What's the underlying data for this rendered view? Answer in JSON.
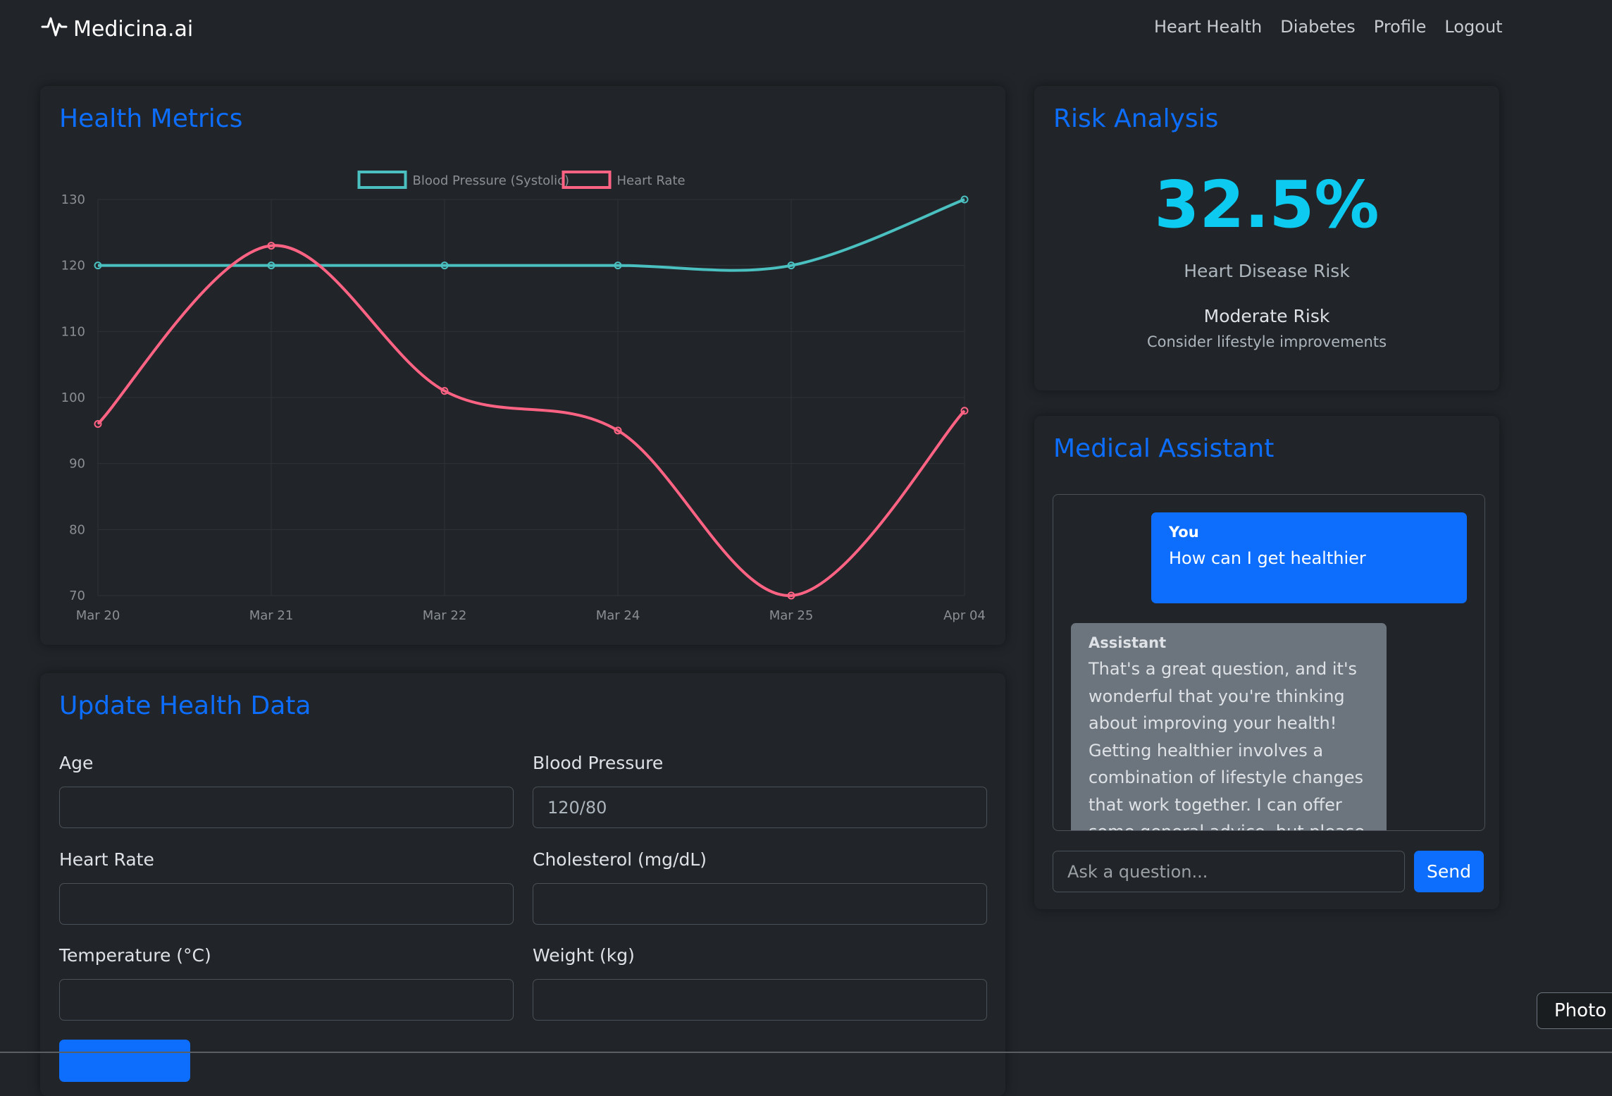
{
  "nav": {
    "brand": "Medicina.ai",
    "links": [
      "Heart Health",
      "Diabetes",
      "Profile",
      "Logout"
    ]
  },
  "metrics": {
    "title": "Health Metrics"
  },
  "chart_data": {
    "type": "line",
    "categories": [
      "Mar 20",
      "Mar 21",
      "Mar 22",
      "Mar 24",
      "Mar 25",
      "Apr 04"
    ],
    "series": [
      {
        "name": "Blood Pressure (Systolic)",
        "values": [
          120,
          120,
          120,
          120,
          120,
          130
        ],
        "color": "#4bc0c0"
      },
      {
        "name": "Heart Rate",
        "values": [
          96,
          123,
          101,
          95,
          70,
          98
        ],
        "color": "#ff6384"
      }
    ],
    "ylim": [
      70,
      130
    ],
    "yticks": [
      130,
      120,
      110,
      100,
      90,
      80,
      70
    ],
    "legend": "top",
    "grid": true
  },
  "risk": {
    "title": "Risk Analysis",
    "value": "32.5%",
    "label": "Heart Disease Risk",
    "level": "Moderate Risk",
    "advice": "Consider lifestyle improvements"
  },
  "assistant": {
    "title": "Medical Assistant",
    "messages": [
      {
        "sender": "You",
        "text": "How can I get healthier"
      },
      {
        "sender": "Assistant",
        "text": "That's a great question, and it's wonderful that you're thinking about improving your health! Getting healthier involves a combination of lifestyle changes that work together. I can offer some general advice, but please"
      }
    ],
    "input_placeholder": "Ask a question...",
    "send_label": "Send"
  },
  "update": {
    "title": "Update Health Data",
    "fields": [
      {
        "label": "Age",
        "value": "",
        "placeholder": ""
      },
      {
        "label": "Blood Pressure",
        "value": "",
        "placeholder": "120/80"
      },
      {
        "label": "Heart Rate",
        "value": "",
        "placeholder": ""
      },
      {
        "label": "Cholesterol (mg/dL)",
        "value": "",
        "placeholder": ""
      },
      {
        "label": "Temperature (°C)",
        "value": "",
        "placeholder": ""
      },
      {
        "label": "Weight (kg)",
        "value": "",
        "placeholder": ""
      }
    ]
  },
  "photo_tab": "Photo"
}
